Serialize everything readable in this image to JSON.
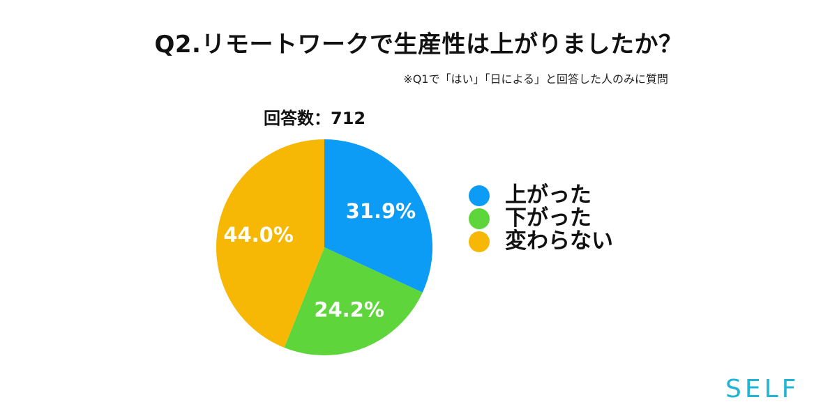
{
  "header": {
    "title": "Q2.リモートワークで生産性は上がりましたか？",
    "note": "※Q1で「はい」「日による」と回答した人のみに質問"
  },
  "responses_label": "回答数：712",
  "logo": "SELF",
  "chart_data": {
    "type": "pie",
    "title": "Q2.リモートワークで生産性は上がりましたか？",
    "slices": [
      {
        "label": "上がった",
        "value": 31.9,
        "display": "31.9%",
        "color": "#0c9bf5"
      },
      {
        "label": "下がった",
        "value": 24.2,
        "display": "24.2%",
        "color": "#5ed63b"
      },
      {
        "label": "変わらない",
        "value": 44.0,
        "display": "44.0%",
        "color": "#f7b705"
      }
    ],
    "legend_position": "right"
  }
}
